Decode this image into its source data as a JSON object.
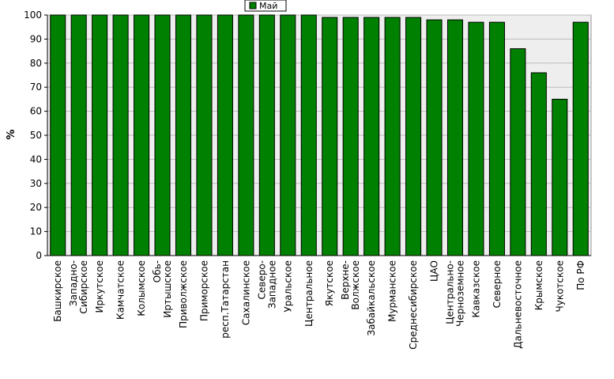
{
  "chart_data": {
    "type": "bar",
    "ylabel": "%",
    "ylim": [
      0,
      100
    ],
    "yticks": [
      0,
      10,
      20,
      30,
      40,
      50,
      60,
      70,
      80,
      90,
      100
    ],
    "grid": true,
    "legend_position": "top-center",
    "categories": [
      "Башкирское",
      "Западно-Сибирское",
      "Иркутское",
      "Камчатское",
      "Колымское",
      "Обь-Иртышское",
      "Приволжское",
      "Приморское",
      "респ.Татарстан",
      "Сахалинское",
      "Северо-Западное",
      "Уральское",
      "Центральное",
      "Якутское",
      "Верхне-Волжское",
      "Забайкальское",
      "Мурманское",
      "Среднесибирское",
      "ЦАО",
      "Центрально-Черноземное",
      "Кавказское",
      "Северное",
      "Дальневосточное",
      "Крымское",
      "Чукотское",
      "По РФ"
    ],
    "label_lines": [
      [
        "Башкирское"
      ],
      [
        "Западно-",
        "Сибирское"
      ],
      [
        "Иркутское"
      ],
      [
        "Камчатское"
      ],
      [
        "Колымское"
      ],
      [
        "Обь-",
        "Иртышское"
      ],
      [
        "Приволжское"
      ],
      [
        "Приморское"
      ],
      [
        "респ.Татарстан"
      ],
      [
        "Сахалинское"
      ],
      [
        "Северо-",
        "Западное"
      ],
      [
        "Уральское"
      ],
      [
        "Центральное"
      ],
      [
        "Якутское"
      ],
      [
        "Верхне-",
        "Волжское"
      ],
      [
        "Забайкальское"
      ],
      [
        "Мурманское"
      ],
      [
        "Среднесибирское"
      ],
      [
        "ЦАО"
      ],
      [
        "Центрально-",
        "Черноземное"
      ],
      [
        "Кавказское"
      ],
      [
        "Северное"
      ],
      [
        "Дальневосточное"
      ],
      [
        "Крымское"
      ],
      [
        "Чукотское"
      ],
      [
        "По РФ"
      ]
    ],
    "series": [
      {
        "name": "Май",
        "color": "#008000",
        "values": [
          100,
          100,
          100,
          100,
          100,
          100,
          100,
          100,
          100,
          100,
          100,
          100,
          100,
          99,
          99,
          99,
          99,
          99,
          98,
          98,
          97,
          97,
          86,
          76,
          65,
          97
        ]
      }
    ]
  },
  "colors": {
    "plot_background": "#eeeeee",
    "grid": "#bbbbbb",
    "bar": "#008000",
    "bar_outline": "#000000"
  }
}
